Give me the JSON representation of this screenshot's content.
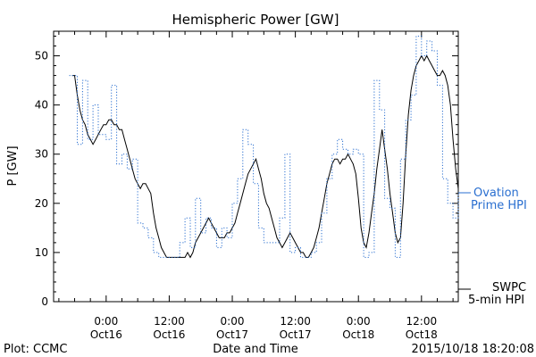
{
  "chart_data": {
    "type": "line",
    "title": "Hemispheric Power [GW]",
    "xlabel": "Date and Time",
    "ylabel": "P [GW]",
    "ylim": [
      0,
      55
    ],
    "xlim_hours": [
      -10,
      67
    ],
    "yticks": [
      0,
      10,
      20,
      30,
      40,
      50
    ],
    "xticks": [
      {
        "t": 0,
        "time": "0:00",
        "date": "Oct16"
      },
      {
        "t": 12,
        "time": "12:00",
        "date": "Oct16"
      },
      {
        "t": 24,
        "time": "0:00",
        "date": "Oct17"
      },
      {
        "t": 36,
        "time": "12:00",
        "date": "Oct17"
      },
      {
        "t": 48,
        "time": "0:00",
        "date": "Oct18"
      },
      {
        "t": 60,
        "time": "12:00",
        "date": "Oct18"
      }
    ],
    "grid": false,
    "series": [
      {
        "name": "SWPC 5-min HPI",
        "legend_line1": "SWPC",
        "legend_line2": "5-min HPI",
        "color": "#000000",
        "style": "solid",
        "points": [
          [
            -6.5,
            46
          ],
          [
            -6,
            46
          ],
          [
            -5.5,
            42
          ],
          [
            -5,
            39
          ],
          [
            -4.5,
            37
          ],
          [
            -4,
            36
          ],
          [
            -3.5,
            34
          ],
          [
            -3,
            33
          ],
          [
            -2.5,
            32
          ],
          [
            -2,
            33
          ],
          [
            -1.5,
            34
          ],
          [
            -1,
            35
          ],
          [
            -0.5,
            36
          ],
          [
            0,
            36
          ],
          [
            0.5,
            37
          ],
          [
            1,
            37
          ],
          [
            1.5,
            36
          ],
          [
            2,
            36
          ],
          [
            2.5,
            35
          ],
          [
            3,
            35
          ],
          [
            3.5,
            33
          ],
          [
            4,
            31
          ],
          [
            4.5,
            29
          ],
          [
            5,
            27
          ],
          [
            5.5,
            25
          ],
          [
            6,
            24
          ],
          [
            6.5,
            23
          ],
          [
            7,
            24
          ],
          [
            7.5,
            24
          ],
          [
            8,
            23
          ],
          [
            8.5,
            22
          ],
          [
            9,
            18
          ],
          [
            9.5,
            15
          ],
          [
            10,
            13
          ],
          [
            10.5,
            11
          ],
          [
            11,
            10
          ],
          [
            11.5,
            9
          ],
          [
            12,
            9
          ],
          [
            12.5,
            9
          ],
          [
            13,
            9
          ],
          [
            13.5,
            9
          ],
          [
            14,
            9
          ],
          [
            14.5,
            9
          ],
          [
            15,
            9
          ],
          [
            15.5,
            10
          ],
          [
            16,
            9
          ],
          [
            16.5,
            10
          ],
          [
            17,
            12
          ],
          [
            17.5,
            13
          ],
          [
            18,
            14
          ],
          [
            18.5,
            15
          ],
          [
            19,
            16
          ],
          [
            19.5,
            17
          ],
          [
            20,
            16
          ],
          [
            20.5,
            15
          ],
          [
            21,
            14
          ],
          [
            21.5,
            13
          ],
          [
            22,
            13
          ],
          [
            22.5,
            13
          ],
          [
            23,
            14
          ],
          [
            23.5,
            14
          ],
          [
            24,
            15
          ],
          [
            24.5,
            16
          ],
          [
            25,
            18
          ],
          [
            25.5,
            20
          ],
          [
            26,
            22
          ],
          [
            26.5,
            24
          ],
          [
            27,
            26
          ],
          [
            27.5,
            27
          ],
          [
            28,
            28
          ],
          [
            28.5,
            29
          ],
          [
            29,
            27
          ],
          [
            29.5,
            25
          ],
          [
            30,
            22
          ],
          [
            30.5,
            20
          ],
          [
            31,
            19
          ],
          [
            31.5,
            17
          ],
          [
            32,
            15
          ],
          [
            32.5,
            13
          ],
          [
            33,
            12
          ],
          [
            33.5,
            11
          ],
          [
            34,
            12
          ],
          [
            34.5,
            13
          ],
          [
            35,
            14
          ],
          [
            35.5,
            13
          ],
          [
            36,
            12
          ],
          [
            36.5,
            11
          ],
          [
            37,
            10
          ],
          [
            37.5,
            10
          ],
          [
            38,
            9
          ],
          [
            38.5,
            9
          ],
          [
            39,
            10
          ],
          [
            39.5,
            11
          ],
          [
            40,
            13
          ],
          [
            40.5,
            15
          ],
          [
            41,
            18
          ],
          [
            41.5,
            21
          ],
          [
            42,
            24
          ],
          [
            42.5,
            26
          ],
          [
            43,
            28
          ],
          [
            43.5,
            29
          ],
          [
            44,
            29
          ],
          [
            44.5,
            28
          ],
          [
            45,
            29
          ],
          [
            45.5,
            29
          ],
          [
            46,
            30
          ],
          [
            46.5,
            29
          ],
          [
            47,
            28
          ],
          [
            47.5,
            26
          ],
          [
            48,
            21
          ],
          [
            48.5,
            15
          ],
          [
            49,
            12
          ],
          [
            49.5,
            11
          ],
          [
            50,
            14
          ],
          [
            50.5,
            18
          ],
          [
            51,
            22
          ],
          [
            51.5,
            27
          ],
          [
            52,
            31
          ],
          [
            52.5,
            35
          ],
          [
            53,
            31
          ],
          [
            53.5,
            27
          ],
          [
            54,
            22
          ],
          [
            54.5,
            18
          ],
          [
            55,
            14
          ],
          [
            55.5,
            12
          ],
          [
            56,
            13
          ],
          [
            56.5,
            20
          ],
          [
            57,
            30
          ],
          [
            57.5,
            38
          ],
          [
            58,
            43
          ],
          [
            58.5,
            46
          ],
          [
            59,
            48
          ],
          [
            59.5,
            49
          ],
          [
            60,
            50
          ],
          [
            60.5,
            49
          ],
          [
            61,
            50
          ],
          [
            61.5,
            49
          ],
          [
            62,
            48
          ],
          [
            62.5,
            47
          ],
          [
            63,
            46
          ],
          [
            63.5,
            46
          ],
          [
            64,
            47
          ],
          [
            64.5,
            46
          ],
          [
            65,
            44
          ],
          [
            65.5,
            40
          ],
          [
            66,
            33
          ],
          [
            66.5,
            27
          ],
          [
            67,
            23
          ]
        ]
      },
      {
        "name": "Ovation Prime HPI",
        "legend_line1": "Ovation",
        "legend_line2": "Prime HPI",
        "color": "#2a6fd0",
        "style": "dotted",
        "points": [
          [
            -7,
            46
          ],
          [
            -5.5,
            32
          ],
          [
            -4.5,
            45
          ],
          [
            -3.5,
            33
          ],
          [
            -2.5,
            40
          ],
          [
            -1.5,
            34
          ],
          [
            0,
            33
          ],
          [
            1,
            44
          ],
          [
            2,
            28
          ],
          [
            3,
            30
          ],
          [
            4,
            27
          ],
          [
            5,
            29
          ],
          [
            6,
            16
          ],
          [
            7,
            15
          ],
          [
            8,
            13
          ],
          [
            9,
            10
          ],
          [
            10,
            9
          ],
          [
            11,
            9
          ],
          [
            12,
            9
          ],
          [
            13,
            9
          ],
          [
            14,
            12
          ],
          [
            15,
            17
          ],
          [
            16,
            11
          ],
          [
            17,
            21
          ],
          [
            18,
            14
          ],
          [
            19,
            17
          ],
          [
            20,
            15
          ],
          [
            21,
            11
          ],
          [
            22,
            15
          ],
          [
            23,
            13
          ],
          [
            24,
            20
          ],
          [
            25,
            25
          ],
          [
            26,
            35
          ],
          [
            27,
            32
          ],
          [
            28,
            24
          ],
          [
            29,
            15
          ],
          [
            30,
            12
          ],
          [
            31,
            12
          ],
          [
            32,
            12
          ],
          [
            33,
            17
          ],
          [
            34,
            30
          ],
          [
            35,
            10
          ],
          [
            36,
            11
          ],
          [
            37,
            9
          ],
          [
            38,
            9
          ],
          [
            39,
            10
          ],
          [
            40,
            12
          ],
          [
            41,
            18
          ],
          [
            42,
            25
          ],
          [
            43,
            30
          ],
          [
            44,
            33
          ],
          [
            45,
            31
          ],
          [
            46,
            30
          ],
          [
            47,
            31
          ],
          [
            48,
            30
          ],
          [
            49,
            9
          ],
          [
            50,
            10
          ],
          [
            51,
            45
          ],
          [
            52,
            39
          ],
          [
            53,
            21
          ],
          [
            54,
            19
          ],
          [
            55,
            9
          ],
          [
            56,
            29
          ],
          [
            57,
            37
          ],
          [
            58,
            42
          ],
          [
            59,
            54
          ],
          [
            60,
            50
          ],
          [
            61,
            53
          ],
          [
            62,
            51
          ],
          [
            63,
            44
          ],
          [
            64,
            25
          ],
          [
            65,
            20
          ],
          [
            66,
            17
          ],
          [
            67,
            22
          ]
        ]
      }
    ]
  },
  "footer": {
    "plot_credit": "Plot: CCMC",
    "timestamp": "2015/10/18 18:20:08"
  }
}
